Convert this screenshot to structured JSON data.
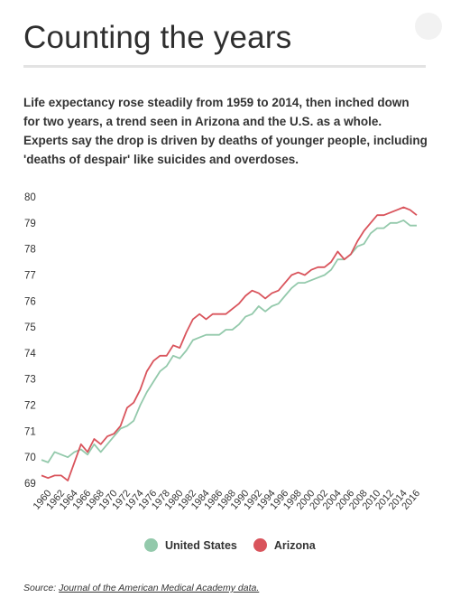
{
  "header": {
    "title": "Counting the years",
    "description": "Life expectancy rose steadily from 1959 to 2014, then inched down for two years, a trend seen in Arizona and the U.S. as a whole. Experts say the drop is driven by deaths of younger people, including 'deaths of despair' like suicides and overdoses."
  },
  "source": {
    "prefix": "Source: ",
    "link_text": "Journal of the American Medical Academy data."
  },
  "chart_data": {
    "type": "line",
    "x": [
      1959,
      1960,
      1961,
      1962,
      1963,
      1964,
      1965,
      1966,
      1967,
      1968,
      1969,
      1970,
      1971,
      1972,
      1973,
      1974,
      1975,
      1976,
      1977,
      1978,
      1979,
      1980,
      1981,
      1982,
      1983,
      1984,
      1985,
      1986,
      1987,
      1988,
      1989,
      1990,
      1991,
      1992,
      1993,
      1994,
      1995,
      1996,
      1997,
      1998,
      1999,
      2000,
      2001,
      2002,
      2003,
      2004,
      2005,
      2006,
      2007,
      2008,
      2009,
      2010,
      2011,
      2012,
      2013,
      2014,
      2015,
      2016
    ],
    "x_tick_labels": [
      "1960",
      "1962",
      "1964",
      "1966",
      "1968",
      "1970",
      "1972",
      "1974",
      "1976",
      "1978",
      "1980",
      "1982",
      "1984",
      "1986",
      "1988",
      "1990",
      "1992",
      "1994",
      "1996",
      "1998",
      "2000",
      "2002",
      "2004",
      "2006",
      "2008",
      "2010",
      "2012",
      "2014",
      "2016"
    ],
    "y_tick_labels": [
      "69",
      "70",
      "71",
      "72",
      "73",
      "74",
      "75",
      "76",
      "77",
      "78",
      "79",
      "80"
    ],
    "ylim": [
      69,
      80
    ],
    "grid": false,
    "legend_position": "bottom",
    "series": [
      {
        "name": "United States",
        "color": "#93c9ab",
        "values": [
          69.9,
          69.8,
          70.2,
          70.1,
          70.0,
          70.2,
          70.3,
          70.1,
          70.5,
          70.2,
          70.5,
          70.8,
          71.1,
          71.2,
          71.4,
          72.0,
          72.5,
          72.9,
          73.3,
          73.5,
          73.9,
          73.8,
          74.1,
          74.5,
          74.6,
          74.7,
          74.7,
          74.7,
          74.9,
          74.9,
          75.1,
          75.4,
          75.5,
          75.8,
          75.6,
          75.8,
          75.9,
          76.2,
          76.5,
          76.7,
          76.7,
          76.8,
          76.9,
          77.0,
          77.2,
          77.6,
          77.6,
          77.8,
          78.1,
          78.2,
          78.6,
          78.8,
          78.8,
          79.0,
          79.0,
          79.1,
          78.9,
          78.9
        ]
      },
      {
        "name": "Arizona",
        "color": "#d9545c",
        "values": [
          69.3,
          69.2,
          69.3,
          69.3,
          69.1,
          69.8,
          70.5,
          70.2,
          70.7,
          70.5,
          70.8,
          70.9,
          71.2,
          71.9,
          72.1,
          72.6,
          73.3,
          73.7,
          73.9,
          73.9,
          74.3,
          74.2,
          74.8,
          75.3,
          75.5,
          75.3,
          75.5,
          75.5,
          75.5,
          75.7,
          75.9,
          76.2,
          76.4,
          76.3,
          76.1,
          76.3,
          76.4,
          76.7,
          77.0,
          77.1,
          77.0,
          77.2,
          77.3,
          77.3,
          77.5,
          77.9,
          77.6,
          77.8,
          78.3,
          78.7,
          79.0,
          79.3,
          79.3,
          79.4,
          79.5,
          79.6,
          79.5,
          79.3
        ]
      }
    ]
  }
}
